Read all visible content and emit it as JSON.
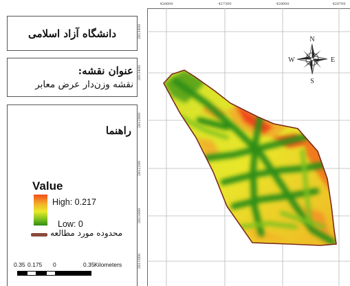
{
  "title": "دانشگاه آزاد اسلامی",
  "subtitle": {
    "heading": "عنوان نقشه:",
    "text": "نقشه وزن‌دار عرض معابر"
  },
  "legend": {
    "heading": "راهنما",
    "value_title": "Value",
    "high_label": "High: 0.217",
    "low_label": "Low: 0",
    "boundary_label": "محدوده مورد مطالعه",
    "ramp_colors": [
      "#f24c1c",
      "#f3b027",
      "#e9ea2a",
      "#7ec11f",
      "#2e8a15"
    ],
    "boundary_color": "#8a4a3a"
  },
  "scalebar": {
    "labels": [
      "0.35",
      "0.175",
      "0",
      "0.35",
      "Kilometers"
    ]
  },
  "map": {
    "x_ticks": [
      "426600",
      "427300",
      "428000",
      "428700"
    ],
    "y_ticks": [
      "2813400",
      "2813400",
      "2812900",
      "2812200",
      "2811600",
      "2811000"
    ],
    "north_arrow": {
      "icon": "compass-rose-icon",
      "labels": {
        "north": "N",
        "west": "W",
        "south": "S",
        "east": "E"
      }
    }
  }
}
